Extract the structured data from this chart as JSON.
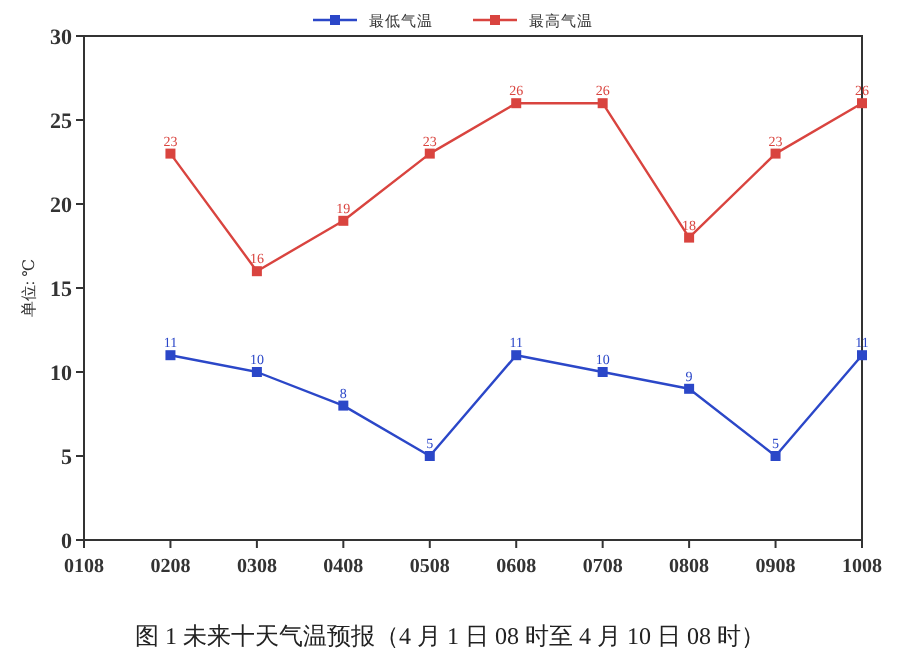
{
  "chart_data": {
    "type": "line",
    "categories": [
      "0108",
      "0208",
      "0308",
      "0408",
      "0508",
      "0608",
      "0708",
      "0808",
      "0908",
      "1008"
    ],
    "series": [
      {
        "name": "最低气温",
        "color": "#2b47c8",
        "values": [
          null,
          11,
          10,
          8,
          5,
          11,
          10,
          9,
          5,
          11
        ]
      },
      {
        "name": "最高气温",
        "color": "#d9443f",
        "values": [
          null,
          23,
          16,
          19,
          23,
          26,
          26,
          18,
          23,
          26
        ]
      }
    ],
    "ylabel": "单位: ℃",
    "ylim": [
      0,
      30
    ],
    "yticks": [
      0,
      5,
      10,
      15,
      20,
      25,
      30
    ],
    "marker": "square",
    "line_style": "solid",
    "data_labels": true,
    "legend": "top",
    "grid": false,
    "annotations": [
      "图 1  未来十天气温预报（4 月 1 日 08 时至 4 月 10 日 08 时）"
    ]
  }
}
